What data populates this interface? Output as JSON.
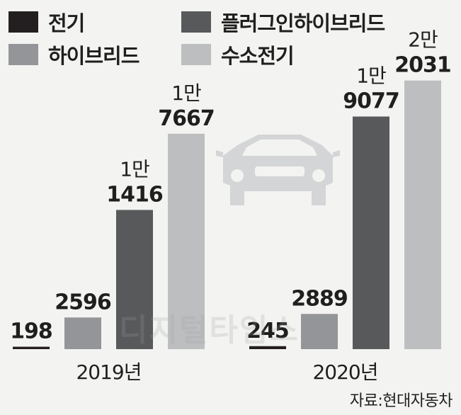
{
  "legend": [
    {
      "label": "전기",
      "color": "#231f20"
    },
    {
      "label": "플러그인하이브리드",
      "color": "#58595b"
    },
    {
      "label": "하이브리드",
      "color": "#939598"
    },
    {
      "label": "수소전기",
      "color": "#bcbec0"
    }
  ],
  "source": "자료:현대자동차",
  "watermark": "디지털타임스",
  "chart_data": {
    "type": "bar",
    "categories": [
      "2019년",
      "2020년"
    ],
    "series": [
      {
        "name": "전기",
        "values": [
          198,
          245
        ],
        "labels": [
          "198",
          "245"
        ]
      },
      {
        "name": "하이브리드",
        "values": [
          2596,
          2889
        ],
        "labels": [
          "2596",
          "2889"
        ]
      },
      {
        "name": "플러그인하이브리드",
        "values": [
          11416,
          19077
        ],
        "labels": [
          "1만 1416",
          "1만 9077"
        ]
      },
      {
        "name": "수소전기",
        "values": [
          17667,
          22031
        ],
        "labels": [
          "1만 7667",
          "2만 2031"
        ]
      }
    ],
    "ylim": [
      0,
      23000
    ],
    "legend_position": "top",
    "grid": false
  },
  "labels_split": {
    "2019년": {
      "plug_unit": "1만",
      "plug_num": "1416",
      "hydro_unit": "1만",
      "hydro_num": "7667"
    },
    "2020년": {
      "plug_unit": "1만",
      "plug_num": "9077",
      "hydro_unit": "2만",
      "hydro_num": "2031"
    }
  }
}
